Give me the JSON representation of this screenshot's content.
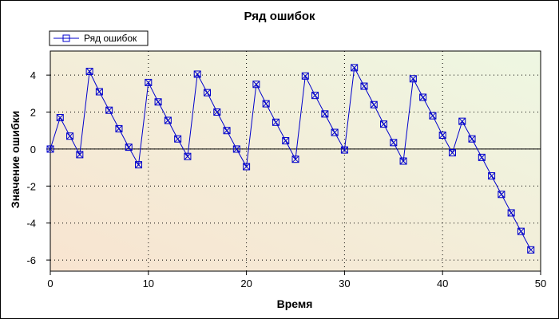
{
  "chart_data": {
    "type": "line",
    "title": "Ряд ошибок",
    "xlabel": "Время",
    "ylabel": "Значение ошибки",
    "xlim": [
      0,
      50
    ],
    "ylim": [
      -6.6,
      5.3
    ],
    "xticks": [
      0,
      10,
      20,
      30,
      40,
      50
    ],
    "yticks": [
      -6,
      -4,
      -2,
      0,
      2,
      4
    ],
    "xtick_labels": [
      "0",
      "10",
      "20",
      "30",
      "40",
      "50"
    ],
    "ytick_labels": [
      "-6",
      "-4",
      "-2",
      "0",
      "2",
      "4"
    ],
    "grid": true,
    "zero_line": true,
    "legend_position": "top-left",
    "series": [
      {
        "name": "Ряд ошибок",
        "color": "#0000cc",
        "marker": "square-x",
        "x": [
          0,
          1,
          2,
          3,
          4,
          5,
          6,
          7,
          8,
          9,
          10,
          11,
          12,
          13,
          14,
          15,
          16,
          17,
          18,
          19,
          20,
          21,
          22,
          23,
          24,
          25,
          26,
          27,
          28,
          29,
          30,
          31,
          32,
          33,
          34,
          35,
          36,
          37,
          38,
          39,
          40,
          41,
          42,
          43,
          44,
          45,
          46,
          47,
          48,
          49
        ],
        "y": [
          0.0,
          1.7,
          0.7,
          -0.3,
          4.2,
          3.1,
          2.1,
          1.1,
          0.1,
          -0.85,
          3.6,
          2.55,
          1.55,
          0.55,
          -0.4,
          4.05,
          3.05,
          2.0,
          1.0,
          0.0,
          -0.95,
          3.5,
          2.45,
          1.45,
          0.45,
          -0.55,
          3.95,
          2.9,
          1.9,
          0.9,
          -0.05,
          4.4,
          3.4,
          2.4,
          1.35,
          0.35,
          -0.65,
          3.8,
          2.8,
          1.8,
          0.75,
          -0.2,
          1.5,
          0.55,
          -0.45,
          -1.45,
          -2.45,
          -3.45,
          -4.45,
          -5.45
        ]
      }
    ]
  }
}
